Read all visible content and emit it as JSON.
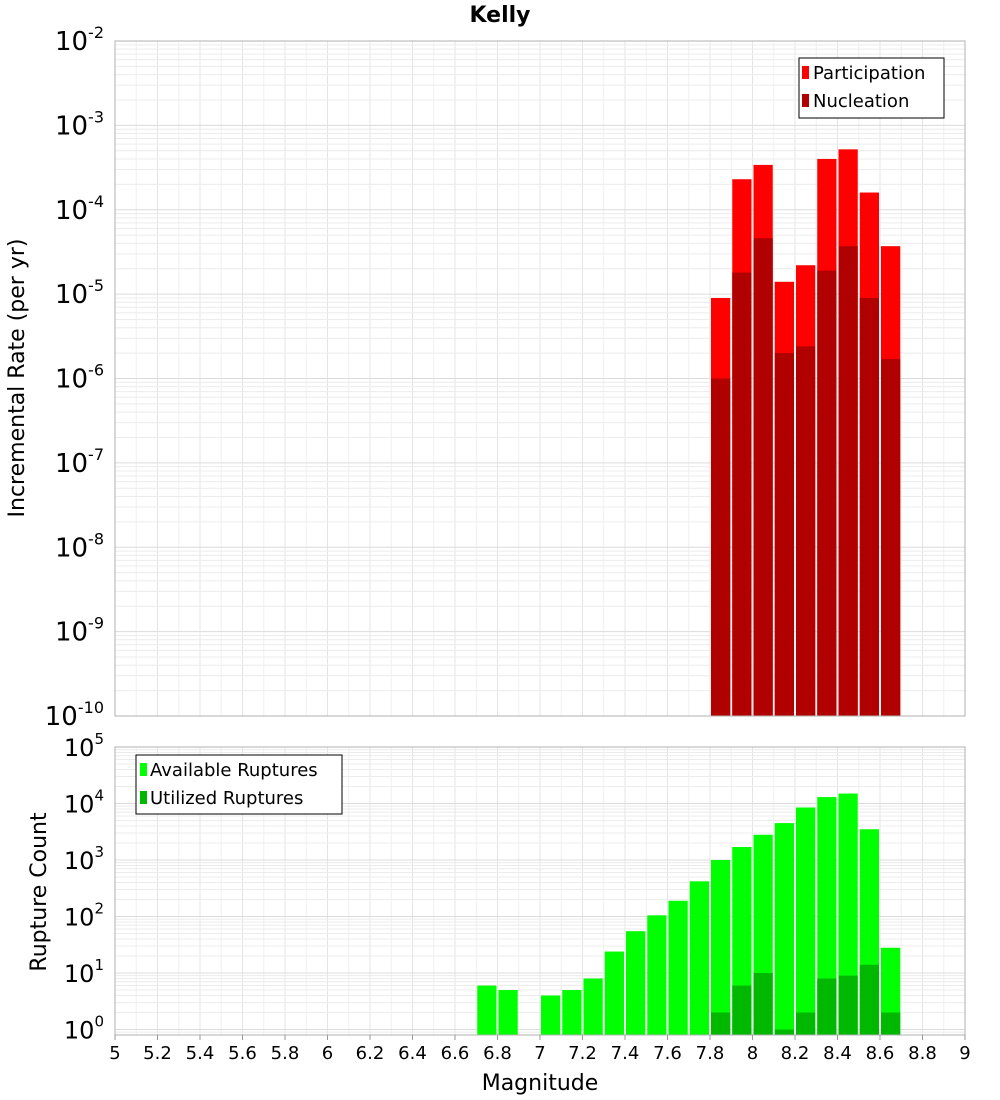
{
  "chart_data": [
    {
      "type": "bar",
      "title": "Kelly",
      "xlabel": "Magnitude",
      "ylabel": "Incremental Rate (per yr)",
      "yscale": "log",
      "xlim": [
        5,
        9
      ],
      "ylim": [
        1e-10,
        0.01
      ],
      "bin_width": 0.1,
      "grid": true,
      "legend_position": "top-right",
      "y_ticks": [
        {
          "base": "10",
          "exp": "-2"
        },
        {
          "base": "10",
          "exp": "-3"
        },
        {
          "base": "10",
          "exp": "-4"
        },
        {
          "base": "10",
          "exp": "-5"
        },
        {
          "base": "10",
          "exp": "-6"
        },
        {
          "base": "10",
          "exp": "-7"
        },
        {
          "base": "10",
          "exp": "-8"
        },
        {
          "base": "10",
          "exp": "-9"
        },
        {
          "base": "10",
          "exp": "-10"
        }
      ],
      "series": [
        {
          "name": "Participation",
          "color": "#ff0000",
          "x": [
            7.85,
            7.95,
            8.05,
            8.15,
            8.25,
            8.35,
            8.45,
            8.55,
            8.65
          ],
          "values": [
            9e-06,
            0.00023,
            0.00034,
            1.4e-05,
            2.2e-05,
            0.0004,
            0.00052,
            0.00016,
            3.7e-05
          ]
        },
        {
          "name": "Nucleation",
          "color": "#b00000",
          "x": [
            7.85,
            7.95,
            8.05,
            8.15,
            8.25,
            8.35,
            8.45,
            8.55,
            8.65
          ],
          "values": [
            1e-06,
            1.8e-05,
            4.6e-05,
            2e-06,
            2.4e-06,
            1.9e-05,
            3.7e-05,
            9e-06,
            1.7e-06
          ]
        }
      ]
    },
    {
      "type": "bar",
      "title": "",
      "xlabel": "Magnitude",
      "ylabel": "Rupture Count",
      "yscale": "log",
      "xlim": [
        5,
        9
      ],
      "ylim": [
        0.8,
        100000.0
      ],
      "bin_width": 0.1,
      "grid": true,
      "legend_position": "top-left",
      "x_ticks": [
        "5",
        "5.2",
        "5.4",
        "5.6",
        "5.8",
        "6",
        "6.2",
        "6.4",
        "6.6",
        "6.8",
        "7",
        "7.2",
        "7.4",
        "7.6",
        "7.8",
        "8",
        "8.2",
        "8.4",
        "8.6",
        "8.8",
        "9"
      ],
      "y_ticks": [
        {
          "base": "10",
          "exp": "5"
        },
        {
          "base": "10",
          "exp": "4"
        },
        {
          "base": "10",
          "exp": "3"
        },
        {
          "base": "10",
          "exp": "2"
        },
        {
          "base": "10",
          "exp": "1"
        },
        {
          "base": "10",
          "exp": "0"
        }
      ],
      "series": [
        {
          "name": "Available Ruptures",
          "color": "#00ff00",
          "x": [
            6.75,
            6.85,
            7.05,
            7.15,
            7.25,
            7.35,
            7.45,
            7.55,
            7.65,
            7.75,
            7.85,
            7.95,
            8.05,
            8.15,
            8.25,
            8.35,
            8.45,
            8.55,
            8.65
          ],
          "values": [
            6,
            5,
            4,
            5,
            8,
            24,
            55,
            105,
            190,
            420,
            1000,
            1700,
            2800,
            4500,
            8500,
            13000,
            15000,
            3500,
            28
          ]
        },
        {
          "name": "Utilized Ruptures",
          "color": "#00b800",
          "x": [
            7.85,
            7.95,
            8.05,
            8.15,
            8.25,
            8.35,
            8.45,
            8.55,
            8.65
          ],
          "values": [
            2,
            6,
            10,
            1,
            2,
            8,
            9,
            14,
            2
          ]
        }
      ]
    }
  ]
}
